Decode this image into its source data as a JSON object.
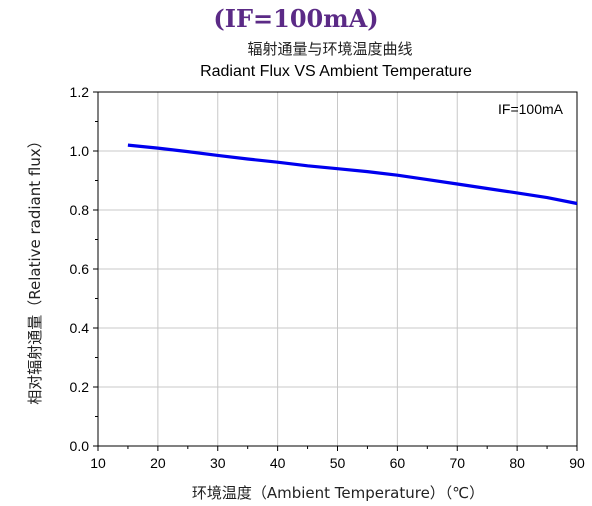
{
  "header": {
    "title": "(IF=100mA)"
  },
  "chart_data": {
    "type": "line",
    "title": "Radiant Flux VS Ambient Temperature",
    "title_cn": "辐射通量与环境温度曲线",
    "xlabel": "环境温度（Ambient Temperature）（℃）",
    "ylabel": "相对辐射通量（Relative radiant flux）",
    "annotation": "IF=100mA",
    "xlim": [
      10,
      90
    ],
    "ylim": [
      0.0,
      1.2
    ],
    "xticks": [
      "10",
      "20",
      "30",
      "40",
      "50",
      "60",
      "70",
      "80",
      "90"
    ],
    "yticks": [
      "0.0",
      "0.2",
      "0.4",
      "0.6",
      "0.8",
      "1.0",
      "1.2"
    ],
    "grid": true,
    "series": [
      {
        "color": "#0000ee",
        "x": [
          15,
          20,
          25,
          30,
          35,
          40,
          45,
          50,
          55,
          60,
          65,
          70,
          75,
          80,
          85,
          90
        ],
        "y": [
          1.02,
          1.01,
          0.998,
          0.985,
          0.973,
          0.962,
          0.95,
          0.94,
          0.93,
          0.918,
          0.903,
          0.888,
          0.873,
          0.858,
          0.842,
          0.822
        ]
      }
    ]
  }
}
